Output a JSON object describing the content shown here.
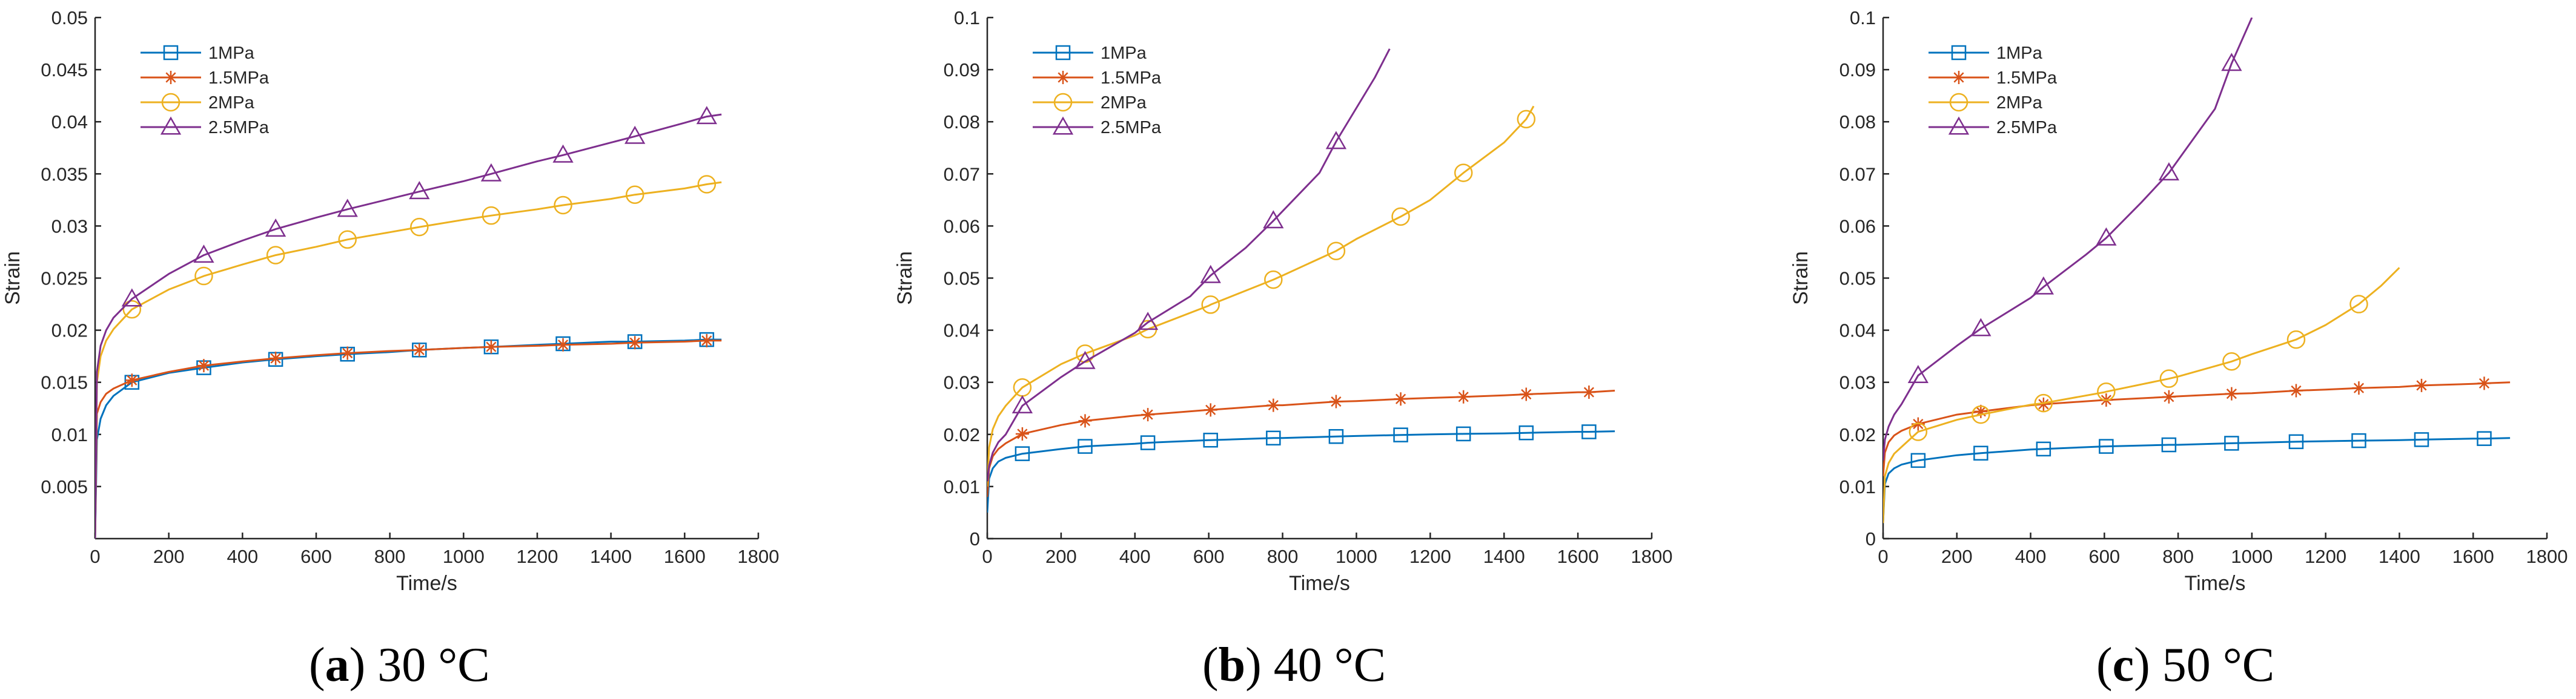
{
  "figure": {
    "captions": [
      {
        "letter": "a",
        "text": "30 °C"
      },
      {
        "letter": "b",
        "text": "40 °C"
      },
      {
        "letter": "c",
        "text": "50 °C"
      }
    ]
  },
  "chart_data": [
    {
      "type": "line",
      "panel": "a",
      "title": "",
      "xlabel": "Time/s",
      "ylabel": "Strain",
      "xlim": [
        0,
        1800
      ],
      "ylim": [
        0,
        0.05
      ],
      "xticks": [
        0,
        200,
        400,
        600,
        800,
        1000,
        1200,
        1400,
        1600,
        1800
      ],
      "yticks": [
        0.005,
        0.01,
        0.015,
        0.02,
        0.025,
        0.03,
        0.035,
        0.04,
        0.045,
        0.05
      ],
      "xtick_labels": [
        "0",
        "200",
        "400",
        "600",
        "800",
        "1000",
        "1200",
        "1400",
        "1600",
        "1800"
      ],
      "ytick_labels": [
        "0.005",
        "0.01",
        "0.015",
        "0.02",
        "0.025",
        "0.03",
        "0.035",
        "0.04",
        "0.045",
        "0.05"
      ],
      "legend_position": "top-left",
      "series": [
        {
          "name": "1MPa",
          "color": "#0072BD",
          "marker": "square",
          "x": [
            0,
            5,
            15,
            30,
            50,
            100,
            200,
            295,
            400,
            490,
            600,
            685,
            800,
            880,
            1000,
            1075,
            1200,
            1270,
            1400,
            1465,
            1600,
            1660,
            1700
          ],
          "y": [
            0,
            0.0095,
            0.0115,
            0.0128,
            0.0137,
            0.015,
            0.0159,
            0.0164,
            0.0169,
            0.0172,
            0.0175,
            0.0177,
            0.0179,
            0.0181,
            0.0183,
            0.0184,
            0.0186,
            0.0187,
            0.0189,
            0.0189,
            0.019,
            0.0191,
            0.0191
          ],
          "marker_x": [
            100,
            295,
            490,
            685,
            880,
            1075,
            1270,
            1465,
            1660
          ],
          "marker_y": [
            0.015,
            0.0164,
            0.0172,
            0.0177,
            0.0181,
            0.0184,
            0.0187,
            0.0189,
            0.0191
          ]
        },
        {
          "name": "1.5MPa",
          "color": "#D95319",
          "marker": "asterisk",
          "x": [
            0,
            5,
            15,
            30,
            50,
            100,
            200,
            295,
            400,
            490,
            600,
            685,
            800,
            880,
            1000,
            1075,
            1200,
            1270,
            1400,
            1465,
            1600,
            1660,
            1700
          ],
          "y": [
            0,
            0.012,
            0.0131,
            0.0139,
            0.0144,
            0.0152,
            0.016,
            0.0166,
            0.017,
            0.0173,
            0.0176,
            0.0178,
            0.018,
            0.0181,
            0.0183,
            0.0184,
            0.0185,
            0.0186,
            0.0187,
            0.0188,
            0.0189,
            0.019,
            0.019
          ],
          "marker_x": [
            100,
            295,
            490,
            685,
            880,
            1075,
            1270,
            1465,
            1660
          ],
          "marker_y": [
            0.0152,
            0.0166,
            0.0173,
            0.0178,
            0.0181,
            0.0184,
            0.0186,
            0.0188,
            0.019
          ]
        },
        {
          "name": "2MPa",
          "color": "#EDB120",
          "marker": "circle",
          "x": [
            0,
            5,
            15,
            30,
            50,
            100,
            200,
            295,
            400,
            490,
            600,
            685,
            800,
            880,
            1000,
            1075,
            1200,
            1270,
            1400,
            1465,
            1600,
            1660,
            1700
          ],
          "y": [
            0,
            0.015,
            0.0175,
            0.019,
            0.0201,
            0.022,
            0.0239,
            0.0252,
            0.0263,
            0.0272,
            0.028,
            0.0287,
            0.0294,
            0.0299,
            0.0306,
            0.031,
            0.0316,
            0.032,
            0.0326,
            0.033,
            0.0336,
            0.034,
            0.0342
          ],
          "marker_x": [
            100,
            295,
            490,
            685,
            880,
            1075,
            1270,
            1465,
            1660
          ],
          "marker_y": [
            0.022,
            0.0252,
            0.0272,
            0.0287,
            0.0299,
            0.031,
            0.032,
            0.033,
            0.034
          ]
        },
        {
          "name": "2.5MPa",
          "color": "#7E2F8E",
          "marker": "triangle",
          "x": [
            0,
            5,
            15,
            30,
            50,
            100,
            200,
            295,
            400,
            490,
            600,
            685,
            800,
            880,
            1000,
            1075,
            1200,
            1270,
            1400,
            1465,
            1600,
            1660,
            1700
          ],
          "y": [
            0,
            0.016,
            0.0185,
            0.02,
            0.0212,
            0.023,
            0.0254,
            0.0272,
            0.0286,
            0.0297,
            0.0308,
            0.0316,
            0.0326,
            0.0333,
            0.0343,
            0.035,
            0.0362,
            0.0368,
            0.038,
            0.0386,
            0.0399,
            0.0405,
            0.0407
          ],
          "marker_x": [
            100,
            295,
            490,
            685,
            880,
            1075,
            1270,
            1465,
            1660
          ],
          "marker_y": [
            0.023,
            0.0272,
            0.0297,
            0.0316,
            0.0333,
            0.035,
            0.0368,
            0.0386,
            0.0405
          ]
        }
      ]
    },
    {
      "type": "line",
      "panel": "b",
      "title": "",
      "xlabel": "Time/s",
      "ylabel": "Strain",
      "xlim": [
        0,
        1800
      ],
      "ylim": [
        0,
        0.1
      ],
      "xticks": [
        0,
        200,
        400,
        600,
        800,
        1000,
        1200,
        1400,
        1600,
        1800
      ],
      "yticks": [
        0,
        0.01,
        0.02,
        0.03,
        0.04,
        0.05,
        0.06,
        0.07,
        0.08,
        0.09,
        0.1
      ],
      "xtick_labels": [
        "0",
        "200",
        "400",
        "600",
        "800",
        "1000",
        "1200",
        "1400",
        "1600",
        "1800"
      ],
      "ytick_labels": [
        "0",
        "0.01",
        "0.02",
        "0.03",
        "0.04",
        "0.05",
        "0.06",
        "0.07",
        "0.08",
        "0.09",
        "0.1"
      ],
      "legend_position": "top-left",
      "series": [
        {
          "name": "1MPa",
          "color": "#0072BD",
          "marker": "square",
          "x": [
            0,
            5,
            15,
            30,
            50,
            95,
            200,
            265,
            400,
            435,
            600,
            605,
            775,
            800,
            945,
            1000,
            1120,
            1200,
            1290,
            1400,
            1460,
            1600,
            1630,
            1700
          ],
          "y": [
            0.005,
            0.0115,
            0.0135,
            0.0148,
            0.0155,
            0.0163,
            0.0172,
            0.0177,
            0.0182,
            0.0184,
            0.0189,
            0.0189,
            0.0193,
            0.0193,
            0.0196,
            0.0197,
            0.0199,
            0.02,
            0.0201,
            0.0202,
            0.0203,
            0.0205,
            0.0205,
            0.0206
          ],
          "marker_x": [
            95,
            265,
            435,
            605,
            775,
            945,
            1120,
            1290,
            1460,
            1630
          ],
          "marker_y": [
            0.0163,
            0.0177,
            0.0184,
            0.0189,
            0.0193,
            0.0196,
            0.0199,
            0.0201,
            0.0203,
            0.0205
          ]
        },
        {
          "name": "1.5MPa",
          "color": "#D95319",
          "marker": "asterisk",
          "x": [
            0,
            5,
            15,
            30,
            50,
            95,
            200,
            265,
            400,
            435,
            600,
            605,
            775,
            800,
            945,
            1000,
            1120,
            1200,
            1290,
            1400,
            1460,
            1600,
            1630,
            1700
          ],
          "y": [
            0.008,
            0.0135,
            0.0158,
            0.0172,
            0.0183,
            0.0201,
            0.0218,
            0.0226,
            0.0236,
            0.0238,
            0.0247,
            0.0247,
            0.0256,
            0.0256,
            0.0263,
            0.0264,
            0.0268,
            0.027,
            0.0272,
            0.0275,
            0.0277,
            0.0281,
            0.0281,
            0.0284
          ],
          "marker_x": [
            95,
            265,
            435,
            605,
            775,
            945,
            1120,
            1290,
            1460,
            1630
          ],
          "marker_y": [
            0.0201,
            0.0226,
            0.0238,
            0.0247,
            0.0256,
            0.0263,
            0.0268,
            0.0272,
            0.0277,
            0.0281
          ]
        },
        {
          "name": "2MPa",
          "color": "#EDB120",
          "marker": "circle",
          "x": [
            0,
            5,
            15,
            30,
            50,
            95,
            200,
            265,
            400,
            435,
            600,
            605,
            775,
            800,
            945,
            1000,
            1120,
            1200,
            1290,
            1400,
            1460,
            1480
          ],
          "y": [
            0.01,
            0.0175,
            0.021,
            0.0235,
            0.0255,
            0.029,
            0.0335,
            0.0355,
            0.039,
            0.0402,
            0.0447,
            0.0449,
            0.0497,
            0.0505,
            0.0552,
            0.0575,
            0.0618,
            0.065,
            0.0702,
            0.076,
            0.0805,
            0.083
          ],
          "marker_x": [
            95,
            265,
            435,
            605,
            775,
            945,
            1120,
            1290,
            1460
          ],
          "marker_y": [
            0.029,
            0.0355,
            0.0402,
            0.0449,
            0.0497,
            0.0552,
            0.0618,
            0.0702,
            0.0805
          ]
        },
        {
          "name": "2.5MPa",
          "color": "#7E2F8E",
          "marker": "triangle",
          "x": [
            0,
            5,
            15,
            30,
            50,
            95,
            200,
            265,
            400,
            435,
            550,
            605,
            700,
            775,
            900,
            945,
            1050,
            1090
          ],
          "y": [
            0.011,
            0.014,
            0.0165,
            0.0185,
            0.02,
            0.0255,
            0.031,
            0.034,
            0.0395,
            0.0415,
            0.0465,
            0.0505,
            0.0558,
            0.061,
            0.0702,
            0.0762,
            0.0885,
            0.094
          ],
          "marker_x": [
            95,
            265,
            435,
            605,
            775,
            945
          ],
          "marker_y": [
            0.0255,
            0.034,
            0.0415,
            0.0505,
            0.061,
            0.0762
          ]
        }
      ]
    },
    {
      "type": "line",
      "panel": "c",
      "title": "",
      "xlabel": "Time/s",
      "ylabel": "Strain",
      "xlim": [
        0,
        1800
      ],
      "ylim": [
        0,
        0.1
      ],
      "xticks": [
        0,
        200,
        400,
        600,
        800,
        1000,
        1200,
        1400,
        1600,
        1800
      ],
      "yticks": [
        0,
        0.01,
        0.02,
        0.03,
        0.04,
        0.05,
        0.06,
        0.07,
        0.08,
        0.09,
        0.1
      ],
      "xtick_labels": [
        "0",
        "200",
        "400",
        "600",
        "800",
        "1000",
        "1200",
        "1400",
        "1600",
        "1800"
      ],
      "ytick_labels": [
        "0",
        "0.01",
        "0.02",
        "0.03",
        "0.04",
        "0.05",
        "0.06",
        "0.07",
        "0.08",
        "0.09",
        "0.1"
      ],
      "legend_position": "top-left",
      "series": [
        {
          "name": "1MPa",
          "color": "#0072BD",
          "marker": "square",
          "x": [
            0,
            5,
            15,
            30,
            50,
            95,
            200,
            265,
            400,
            435,
            600,
            605,
            775,
            800,
            945,
            1000,
            1120,
            1200,
            1290,
            1400,
            1460,
            1600,
            1630,
            1700
          ],
          "y": [
            0.003,
            0.0105,
            0.0125,
            0.0135,
            0.0142,
            0.015,
            0.016,
            0.0164,
            0.0171,
            0.0172,
            0.0177,
            0.0177,
            0.018,
            0.018,
            0.0183,
            0.0184,
            0.0186,
            0.0187,
            0.0188,
            0.0189,
            0.019,
            0.0192,
            0.0192,
            0.0193
          ],
          "marker_x": [
            95,
            265,
            435,
            605,
            775,
            945,
            1120,
            1290,
            1460,
            1630
          ],
          "marker_y": [
            0.015,
            0.0164,
            0.0172,
            0.0177,
            0.018,
            0.0183,
            0.0186,
            0.0188,
            0.019,
            0.0192
          ]
        },
        {
          "name": "1.5MPa",
          "color": "#D95319",
          "marker": "asterisk",
          "x": [
            0,
            5,
            15,
            30,
            50,
            95,
            200,
            265,
            400,
            435,
            600,
            605,
            775,
            800,
            945,
            1000,
            1120,
            1200,
            1290,
            1400,
            1460,
            1600,
            1630,
            1700
          ],
          "y": [
            0.012,
            0.0165,
            0.0185,
            0.0198,
            0.0207,
            0.022,
            0.0238,
            0.0244,
            0.0256,
            0.0258,
            0.0266,
            0.0266,
            0.0272,
            0.0273,
            0.0278,
            0.0279,
            0.0284,
            0.0286,
            0.0289,
            0.0291,
            0.0294,
            0.0297,
            0.0298,
            0.03
          ],
          "marker_x": [
            95,
            265,
            435,
            605,
            775,
            945,
            1120,
            1290,
            1460,
            1630
          ],
          "marker_y": [
            0.022,
            0.0244,
            0.0258,
            0.0266,
            0.0272,
            0.0278,
            0.0284,
            0.0289,
            0.0294,
            0.0298
          ]
        },
        {
          "name": "2MPa",
          "color": "#EDB120",
          "marker": "circle",
          "x": [
            0,
            5,
            15,
            30,
            50,
            95,
            200,
            265,
            400,
            435,
            600,
            605,
            775,
            800,
            945,
            1000,
            1120,
            1200,
            1290,
            1350,
            1400
          ],
          "y": [
            0.003,
            0.012,
            0.0145,
            0.0163,
            0.0176,
            0.0205,
            0.0228,
            0.0238,
            0.0257,
            0.026,
            0.0281,
            0.0282,
            0.0307,
            0.0311,
            0.034,
            0.0354,
            0.0382,
            0.041,
            0.045,
            0.0485,
            0.052
          ],
          "marker_x": [
            95,
            265,
            435,
            605,
            775,
            945,
            1120,
            1290
          ],
          "marker_y": [
            0.0205,
            0.0238,
            0.026,
            0.0282,
            0.0307,
            0.034,
            0.0382,
            0.045
          ]
        },
        {
          "name": "2.5MPa",
          "color": "#7E2F8E",
          "marker": "triangle",
          "x": [
            0,
            5,
            15,
            30,
            50,
            95,
            200,
            265,
            400,
            435,
            550,
            605,
            700,
            775,
            900,
            945,
            1000
          ],
          "y": [
            0.015,
            0.019,
            0.0215,
            0.0238,
            0.0258,
            0.0313,
            0.037,
            0.0403,
            0.0462,
            0.0483,
            0.0545,
            0.0577,
            0.0645,
            0.0702,
            0.0825,
            0.0912,
            0.1
          ],
          "marker_x": [
            95,
            265,
            435,
            605,
            775,
            945
          ],
          "marker_y": [
            0.0313,
            0.0403,
            0.0483,
            0.0577,
            0.0702,
            0.0912
          ]
        }
      ]
    }
  ]
}
